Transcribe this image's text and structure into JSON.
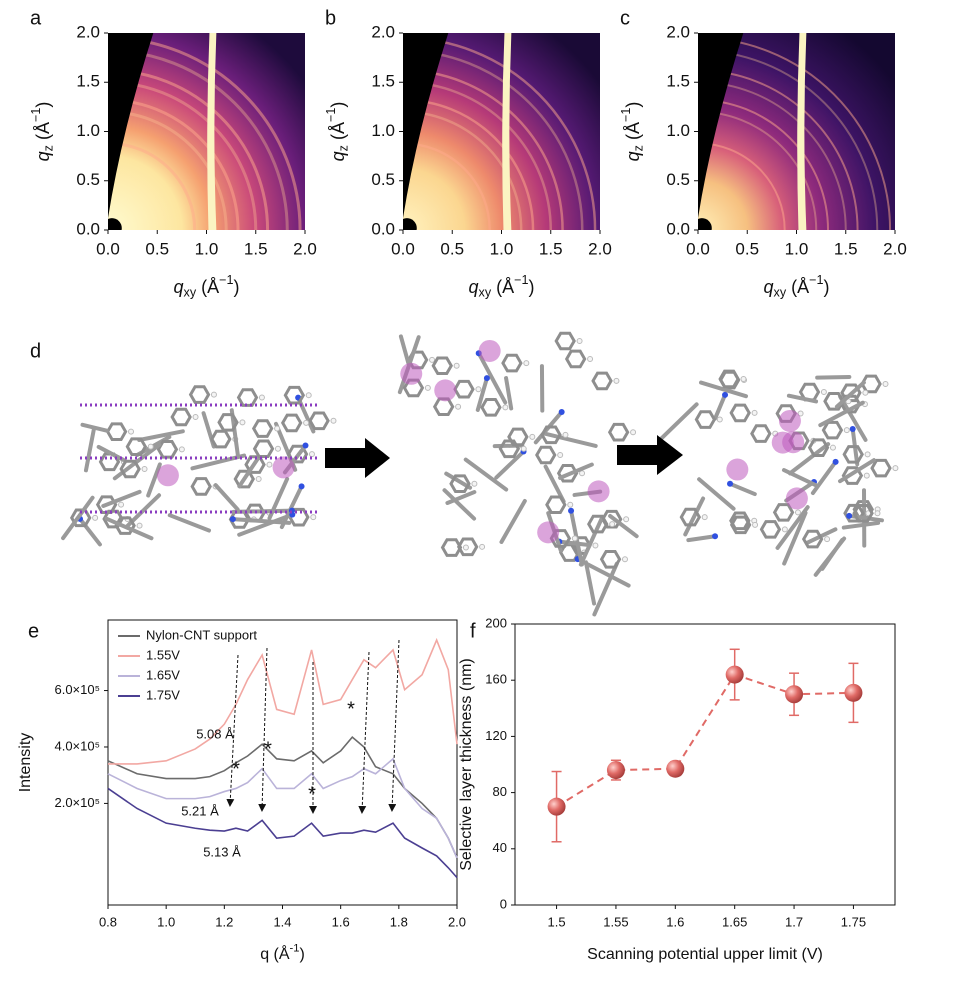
{
  "chart_data": [
    {
      "type": "heatmap",
      "label": "a",
      "xlabel": [
        {
          "text": "q",
          "style": "italic"
        },
        {
          "text": "xy",
          "style": "sub"
        },
        {
          "text": " (Å"
        },
        {
          "text": "−1",
          "style": "sup"
        },
        {
          "text": ")"
        }
      ],
      "ylabel": [
        {
          "text": "q",
          "style": "italic"
        },
        {
          "text": "z",
          "style": "sub"
        },
        {
          "text": " (Å"
        },
        {
          "text": "−1",
          "style": "sup"
        },
        {
          "text": ")"
        }
      ],
      "xlim": [
        0,
        2
      ],
      "ylim": [
        0,
        2
      ],
      "xticks": [
        {
          "value": 0,
          "label": "0.0"
        },
        0.5,
        {
          "value": 1,
          "label": "1.0"
        },
        1.5,
        {
          "value": 2,
          "label": "2.0"
        }
      ],
      "yticks": [
        {
          "value": 0,
          "label": "0.0"
        },
        0.5,
        {
          "value": 1,
          "label": "1.0"
        },
        1.5,
        {
          "value": 2,
          "label": "2.0"
        }
      ]
    },
    {
      "type": "heatmap",
      "label": "b",
      "xlabel": [
        {
          "text": "q",
          "style": "italic"
        },
        {
          "text": "xy",
          "style": "sub"
        },
        {
          "text": " (Å"
        },
        {
          "text": "−1",
          "style": "sup"
        },
        {
          "text": ")"
        }
      ],
      "ylabel": [
        {
          "text": "q",
          "style": "italic"
        },
        {
          "text": "z",
          "style": "sub"
        },
        {
          "text": " (Å"
        },
        {
          "text": "−1",
          "style": "sup"
        },
        {
          "text": ")"
        }
      ],
      "xlim": [
        0,
        2
      ],
      "ylim": [
        0,
        2
      ],
      "xticks": [
        {
          "value": 0,
          "label": "0.0"
        },
        0.5,
        {
          "value": 1,
          "label": "1.0"
        },
        1.5,
        {
          "value": 2,
          "label": "2.0"
        }
      ],
      "yticks": [
        {
          "value": 0,
          "label": "0.0"
        },
        0.5,
        {
          "value": 1,
          "label": "1.0"
        },
        1.5,
        {
          "value": 2,
          "label": "2.0"
        }
      ]
    },
    {
      "type": "heatmap",
      "label": "c",
      "xlabel": [
        {
          "text": "q",
          "style": "italic"
        },
        {
          "text": "xy",
          "style": "sub"
        },
        {
          "text": " (Å"
        },
        {
          "text": "−1",
          "style": "sup"
        },
        {
          "text": ")"
        }
      ],
      "ylabel": [
        {
          "text": "q",
          "style": "italic"
        },
        {
          "text": "z",
          "style": "sub"
        },
        {
          "text": " (Å"
        },
        {
          "text": "−1",
          "style": "sup"
        },
        {
          "text": ")"
        }
      ],
      "xlim": [
        0,
        2
      ],
      "ylim": [
        0,
        2
      ],
      "xticks": [
        {
          "value": 0,
          "label": "0.0"
        },
        0.5,
        {
          "value": 1,
          "label": "1.0"
        },
        1.5,
        {
          "value": 2,
          "label": "2.0"
        }
      ],
      "yticks": [
        {
          "value": 0,
          "label": "0.0"
        },
        0.5,
        {
          "value": 1,
          "label": "1.0"
        },
        1.5,
        {
          "value": 2,
          "label": "2.0"
        }
      ]
    },
    {
      "type": "line",
      "label": "e",
      "xlabel": [
        {
          "text": "q (Å"
        },
        {
          "text": "-1",
          "style": "sup"
        },
        {
          "text": ")"
        }
      ],
      "ylabel": [
        {
          "text": "Intensity"
        }
      ],
      "xlim": [
        0.8,
        2.0
      ],
      "ylim": [
        -160000,
        850000
      ],
      "xticks": [
        0.8,
        {
          "value": 1,
          "label": "1.0"
        },
        1.2,
        1.4,
        1.6,
        1.8,
        {
          "value": 2,
          "label": "2.0"
        }
      ],
      "yticks": [
        {
          "value": 200000,
          "label": "2.0×10⁵"
        },
        {
          "value": 400000,
          "label": "4.0×10⁵"
        },
        {
          "value": 600000,
          "label": "6.0×10⁵"
        }
      ],
      "legend": "upper left",
      "annotations": [
        "5.08 Å",
        "5.21 Å",
        "5.13 Å",
        "*",
        "*",
        "*",
        "*"
      ],
      "x": [
        0.8,
        0.9,
        1.0,
        1.1,
        1.15,
        1.2,
        1.24,
        1.28,
        1.33,
        1.38,
        1.44,
        1.5,
        1.54,
        1.6,
        1.64,
        1.68,
        1.72,
        1.78,
        1.82,
        1.88,
        1.93,
        1.97,
        2.0
      ],
      "series": [
        {
          "name": "Nylon-CNT support",
          "color": "#6b6b6b",
          "values": [
            351000,
            305000,
            288000,
            288000,
            295000,
            316000,
            344000,
            368000,
            410000,
            358000,
            351000,
            386000,
            344000,
            386000,
            435000,
            400000,
            330000,
            305000,
            253000,
            200000,
            147000,
            77000,
            7000
          ]
        },
        {
          "name": "1.55V",
          "color": "#f2a8a3",
          "values": [
            340000,
            340000,
            351000,
            393000,
            428000,
            481000,
            551000,
            639000,
            726000,
            533000,
            516000,
            744000,
            551000,
            568000,
            639000,
            709000,
            681000,
            744000,
            603000,
            656000,
            779000,
            674000,
            410000
          ]
        },
        {
          "name": "1.65V",
          "color": "#bab3d9",
          "values": [
            305000,
            253000,
            217000,
            217000,
            224000,
            242000,
            253000,
            274000,
            323000,
            253000,
            253000,
            305000,
            253000,
            281000,
            295000,
            323000,
            305000,
            358000,
            253000,
            182000,
            147000,
            77000,
            7000
          ]
        },
        {
          "name": "1.75V",
          "color": "#4b3f92",
          "values": [
            253000,
            182000,
            130000,
            112000,
            105000,
            102000,
            112000,
            102000,
            140000,
            77000,
            84000,
            130000,
            84000,
            95000,
            95000,
            105000,
            98000,
            130000,
            77000,
            42000,
            14000,
            -28000,
            -63000
          ]
        }
      ]
    },
    {
      "type": "scatter",
      "label": "f",
      "xlabel": [
        {
          "text": "Scanning potential upper limit (V)"
        }
      ],
      "ylabel": [
        {
          "text": "Selective layer thickness (nm)"
        }
      ],
      "xlim": [
        1.465,
        1.785
      ],
      "ylim": [
        0,
        200
      ],
      "xticks": [
        1.5,
        1.55,
        1.6,
        1.65,
        1.7,
        1.75
      ],
      "yticks": [
        0,
        40,
        80,
        120,
        160,
        200
      ],
      "color": "#e06a66",
      "x": [
        1.5,
        1.55,
        1.6,
        1.65,
        1.7,
        1.75
      ],
      "values": [
        70,
        96,
        97,
        164,
        150,
        151
      ],
      "errors": [
        25,
        7,
        5,
        18,
        15,
        21
      ]
    }
  ],
  "diagram": {
    "label": "d"
  }
}
